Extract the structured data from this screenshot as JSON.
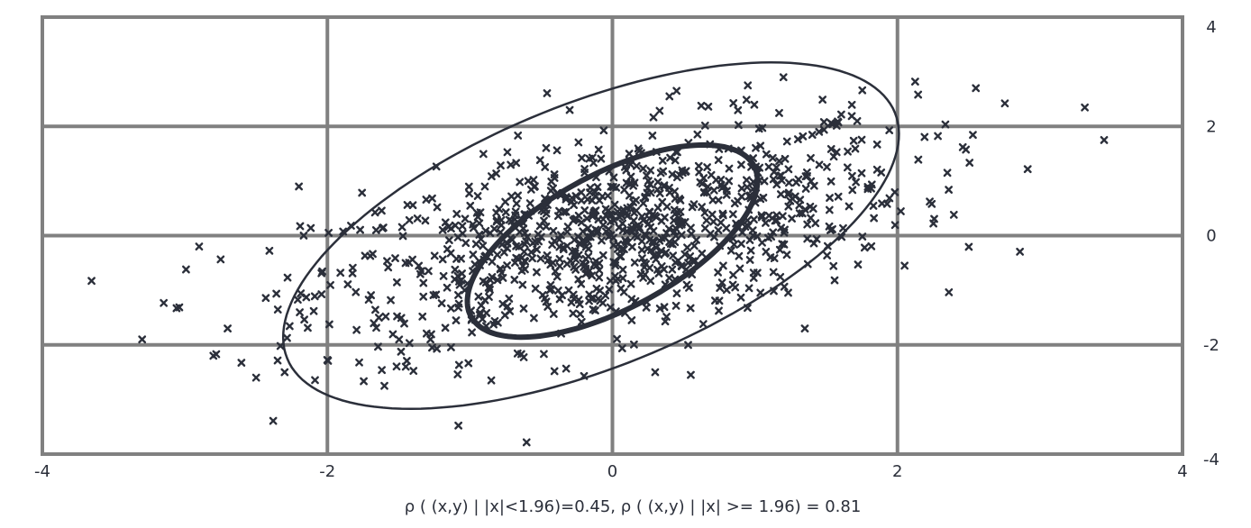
{
  "chart_data": {
    "type": "scatter",
    "title": "",
    "xlabel": "ρ ( (x,y) | |x|<1.96)=0.45, ρ ( (x,y) | |x| >= 1.96) = 0.81",
    "ylabel": "",
    "xlim": [
      -4,
      4
    ],
    "ylim": [
      -4,
      4
    ],
    "x_ticks": [
      "-4",
      "-2",
      "0",
      "2",
      "4"
    ],
    "y_ticks": [
      "4",
      "2",
      "0",
      "-2",
      "-4"
    ],
    "grid": true,
    "legend": "none",
    "marker": "x",
    "colors": {
      "points": "#2b2f3a",
      "grid": "#808080",
      "ellipse": "#2b2f3a"
    },
    "ellipses": [
      {
        "name": "inner",
        "center": [
          0.0,
          -0.1
        ],
        "semi_major": 2.25,
        "semi_minor": 0.95,
        "angle_deg": 28
      },
      {
        "name": "outer",
        "center": [
          -0.15,
          0.0
        ],
        "semi_major": 4.6,
        "semi_minor": 1.85,
        "angle_deg": 22
      }
    ],
    "series": [
      {
        "n_points": 1000,
        "correlation": 0.5,
        "outliers": [
          [
            -3.3,
            -1.9
          ],
          [
            -2.9,
            -0.2
          ],
          [
            -2.8,
            -2.2
          ],
          [
            -2.7,
            -1.7
          ],
          [
            -2.5,
            -2.6
          ],
          [
            -2.3,
            -2.5
          ],
          [
            -2.2,
            0.9
          ],
          [
            2.55,
            2.7
          ],
          [
            3.45,
            1.75
          ],
          [
            2.35,
            1.15
          ],
          [
            1.2,
            2.9
          ],
          [
            0.95,
            2.75
          ],
          [
            2.05,
            -0.55
          ],
          [
            1.35,
            -1.7
          ],
          [
            0.55,
            -2.55
          ],
          [
            -1.6,
            -2.75
          ],
          [
            -0.85,
            -2.65
          ],
          [
            0.3,
            -2.5
          ],
          [
            -1.45,
            -2.4
          ],
          [
            -0.3,
            2.3
          ],
          [
            0.4,
            2.55
          ],
          [
            0.45,
            2.65
          ],
          [
            1.45,
            1.9
          ]
        ]
      }
    ]
  }
}
